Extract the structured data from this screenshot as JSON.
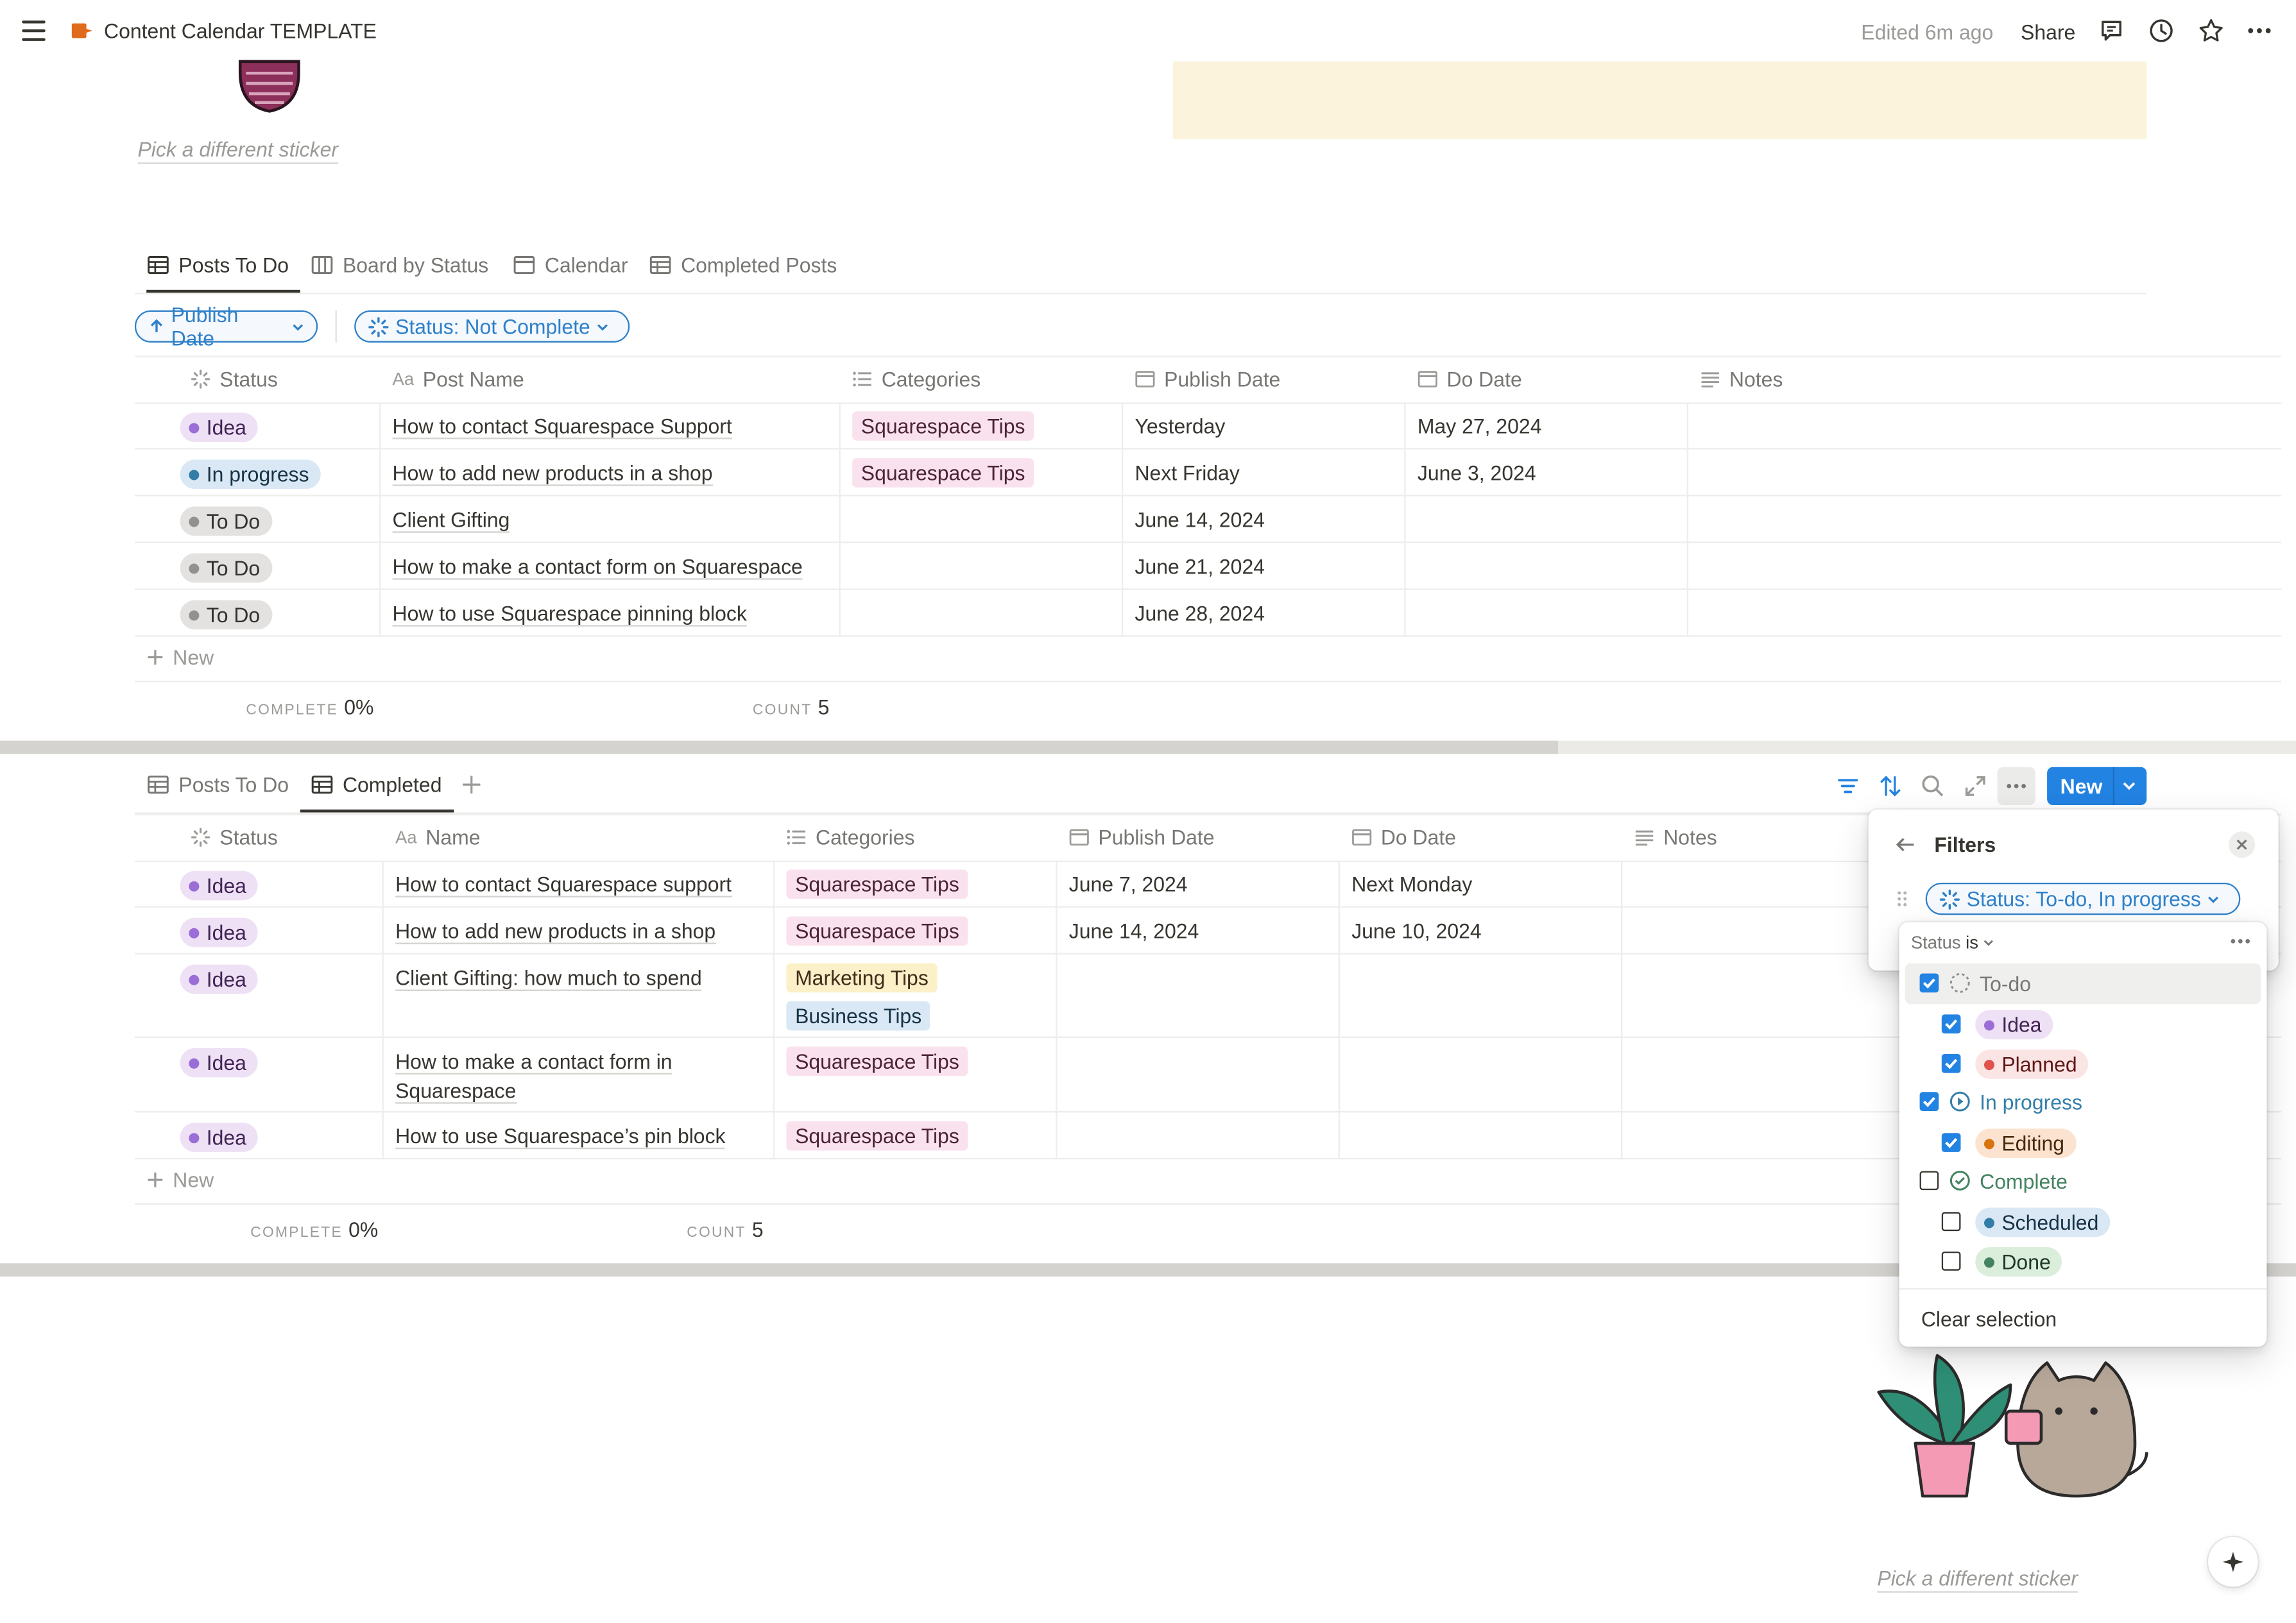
{
  "topbar": {
    "title": "Content Calendar TEMPLATE",
    "edited": "Edited 6m ago",
    "share": "Share"
  },
  "sticker_caption": "Pick a different sticker",
  "sticker_caption_bottom": "Pick a different sticker",
  "view1": {
    "tabs": [
      "Posts To Do",
      "Board by Status",
      "Calendar",
      "Completed Posts"
    ],
    "sort_label": "Publish Date",
    "filter_label": "Status: Not Complete",
    "columns": [
      "Status",
      "Post Name",
      "Categories",
      "Publish Date",
      "Do Date",
      "Notes"
    ],
    "rows": [
      {
        "status": "Idea",
        "name": "How to contact Squarespace Support",
        "category": "Squarespace Tips",
        "publish": "Yesterday",
        "do": "May 27, 2024"
      },
      {
        "status": "In progress",
        "name": "How to add new products in a shop",
        "category": "Squarespace Tips",
        "publish": "Next Friday",
        "do": "June 3, 2024"
      },
      {
        "status": "To Do",
        "name": "Client Gifting",
        "category": "",
        "publish": "June 14, 2024",
        "do": ""
      },
      {
        "status": "To Do",
        "name": "How to make a contact form on Squarespace",
        "category": "",
        "publish": "June 21, 2024",
        "do": ""
      },
      {
        "status": "To Do",
        "name": "How to use Squarespace pinning block",
        "category": "",
        "publish": "June 28, 2024",
        "do": ""
      }
    ],
    "new_label": "New",
    "complete_label": "COMPLETE",
    "complete_value": "0%",
    "count_label": "COUNT",
    "count_value": "5"
  },
  "view2": {
    "tabs": [
      "Posts To Do",
      "Completed"
    ],
    "new_button": "New",
    "columns": [
      "Status",
      "Name",
      "Categories",
      "Publish Date",
      "Do Date",
      "Notes"
    ],
    "rows": [
      {
        "status": "Idea",
        "name": "How to contact Squarespace support",
        "categories": [
          "Squarespace Tips"
        ],
        "publish": "June 7, 2024",
        "do": "Next Monday"
      },
      {
        "status": "Idea",
        "name": "How to add new products in a shop",
        "categories": [
          "Squarespace Tips"
        ],
        "publish": "June 14, 2024",
        "do": "June 10, 2024"
      },
      {
        "status": "Idea",
        "name": "Client Gifting: how much to spend",
        "categories": [
          "Marketing Tips",
          "Business Tips"
        ],
        "publish": "",
        "do": ""
      },
      {
        "status": "Idea",
        "name_line1": "How to make a contact form in",
        "name_line2": "Squarespace",
        "categories": [
          "Squarespace Tips"
        ],
        "publish": "",
        "do": ""
      },
      {
        "status": "Idea",
        "name": "How to use Squarespace’s pin block",
        "categories": [
          "Squarespace Tips"
        ],
        "publish": "",
        "do": ""
      }
    ],
    "new_label": "New",
    "complete_label": "COMPLETE",
    "complete_value": "0%",
    "count_label": "COUNT",
    "count_value": "5"
  },
  "filters_popup": {
    "title": "Filters",
    "chip": "Status: To-do, In progress",
    "status_is_prefix": "Status",
    "status_is_op": "is",
    "groups": [
      {
        "label": "To-do",
        "checked": true,
        "options": [
          {
            "label": "Idea",
            "checked": true
          },
          {
            "label": "Planned",
            "checked": true
          }
        ]
      },
      {
        "label": "In progress",
        "checked": true,
        "options": [
          {
            "label": "Editing",
            "checked": true
          }
        ]
      },
      {
        "label": "Complete",
        "checked": false,
        "options": [
          {
            "label": "Scheduled",
            "checked": false
          },
          {
            "label": "Done",
            "checked": false
          }
        ]
      }
    ],
    "clear": "Clear selection"
  },
  "colors": {
    "accent": "#2383e2",
    "filter_blue": "#2f80c9",
    "callout": "#fbf3db",
    "tag_pink": "#f9e2ee",
    "status_idea": "#eee0f5",
    "status_in_progress": "#d9e8f4",
    "status_todo": "#e3e2e0"
  }
}
